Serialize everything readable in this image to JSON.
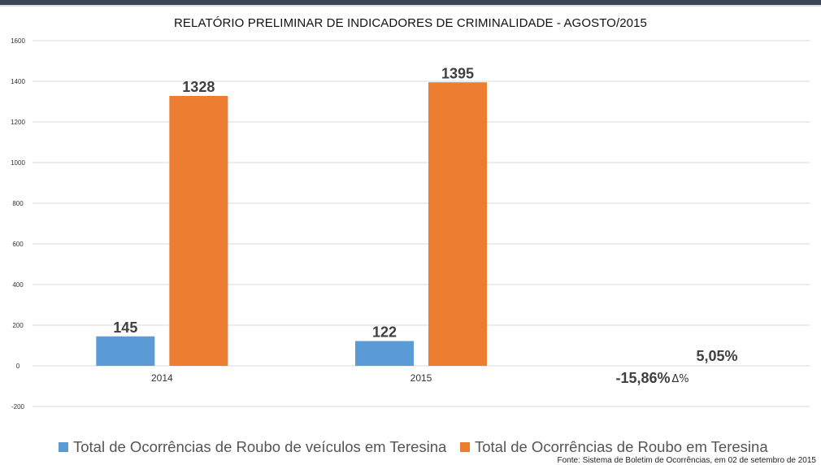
{
  "chart_data": {
    "type": "bar",
    "title": "RELATÓRIO PRELIMINAR DE INDICADORES DE CRIMINALIDADE - AGOSTO/2015",
    "categories": [
      "2014",
      "2015"
    ],
    "series": [
      {
        "name": "Total de Ocorrências de Roubo de veículos em Teresina",
        "values": [
          145,
          122
        ],
        "labels": [
          "145",
          "122"
        ],
        "color": "#5b9bd5"
      },
      {
        "name": "Total de Ocorrências de Roubo em Teresina",
        "values": [
          1328,
          1395
        ],
        "labels": [
          "1328",
          "1395"
        ],
        "color": "#ed7d31"
      }
    ],
    "ylim": [
      -200,
      1600
    ],
    "yticks": [
      -200,
      0,
      200,
      400,
      600,
      800,
      1000,
      1200,
      1400,
      1600
    ],
    "grid": true,
    "legend_position": "bottom",
    "annotations": {
      "change_series_1": "-15,86%",
      "change_series_2": "5,05%",
      "change_symbol": "Δ%"
    }
  },
  "source": "Fonte: Sistema de Boletim de Ocorrências, em 02 de setembro de 2015"
}
